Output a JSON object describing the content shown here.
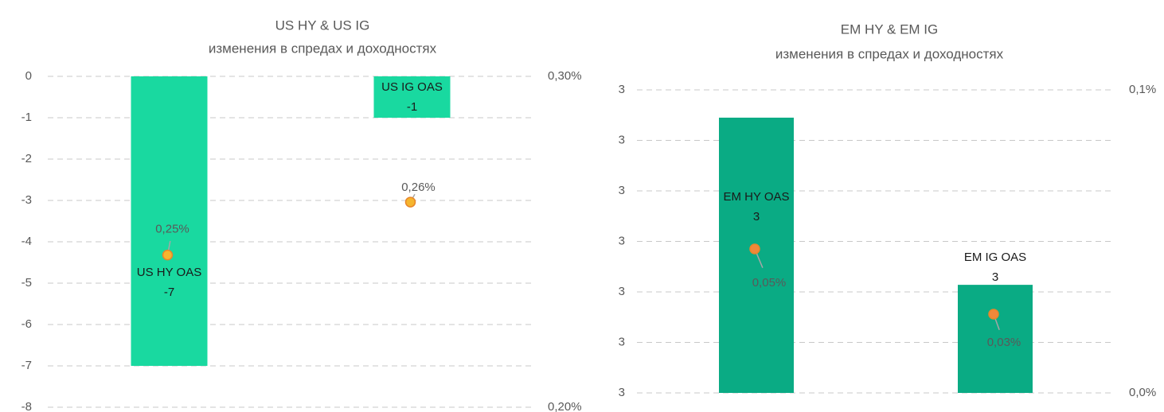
{
  "chart_data": [
    {
      "type": "bar",
      "title": "US HY & US IG",
      "subtitle": "изменения в спредах и доходностях",
      "categories": [
        "US HY OAS",
        "US IG OAS"
      ],
      "series": [
        {
          "type": "bar",
          "color": "#19d9a0",
          "values": [
            -7,
            -1
          ]
        },
        {
          "type": "scatter",
          "axis": "y2",
          "color": "#f5b52e",
          "values": [
            0.246,
            0.262
          ],
          "value_labels": [
            "0,25%",
            "0,26%"
          ]
        }
      ],
      "ylim": [
        -8,
        0
      ],
      "yticks": [
        0,
        -1,
        -2,
        -3,
        -4,
        -5,
        -6,
        -7,
        -8
      ],
      "y2lim": [
        0.2,
        0.3
      ],
      "y2ticks": [
        {
          "value": 0.3,
          "label": "0,30%"
        },
        {
          "value": 0.2,
          "label": "0,20%"
        }
      ],
      "grid": true
    },
    {
      "type": "bar",
      "title": "EM HY & EM IG",
      "subtitle": "изменения в спредах и доходностях",
      "categories": [
        "EM HY OAS",
        "EM IG OAS"
      ],
      "series": [
        {
          "type": "bar",
          "color": "#0aab84",
          "values": [
            3.245,
            2.914
          ],
          "value_labels": [
            "3",
            "3"
          ]
        },
        {
          "type": "scatter",
          "axis": "y2",
          "color": "#f0883a",
          "values": [
            0.0475,
            0.026
          ],
          "value_labels": [
            "0,05%",
            "0,03%"
          ]
        }
      ],
      "ylim": [
        2.7,
        3.3
      ],
      "yticks": [
        {
          "value": 3.3,
          "label": "3"
        },
        {
          "value": 3.2,
          "label": "3"
        },
        {
          "value": 3.1,
          "label": "3"
        },
        {
          "value": 3.0,
          "label": "3"
        },
        {
          "value": 2.9,
          "label": "3"
        },
        {
          "value": 2.8,
          "label": "3"
        },
        {
          "value": 2.7,
          "label": "3"
        }
      ],
      "y2lim": [
        0,
        0.1
      ],
      "y2ticks": [
        {
          "value": 0.1,
          "label": "0,1%"
        },
        {
          "value": 0,
          "label": "0,0%"
        }
      ],
      "grid": true
    }
  ]
}
